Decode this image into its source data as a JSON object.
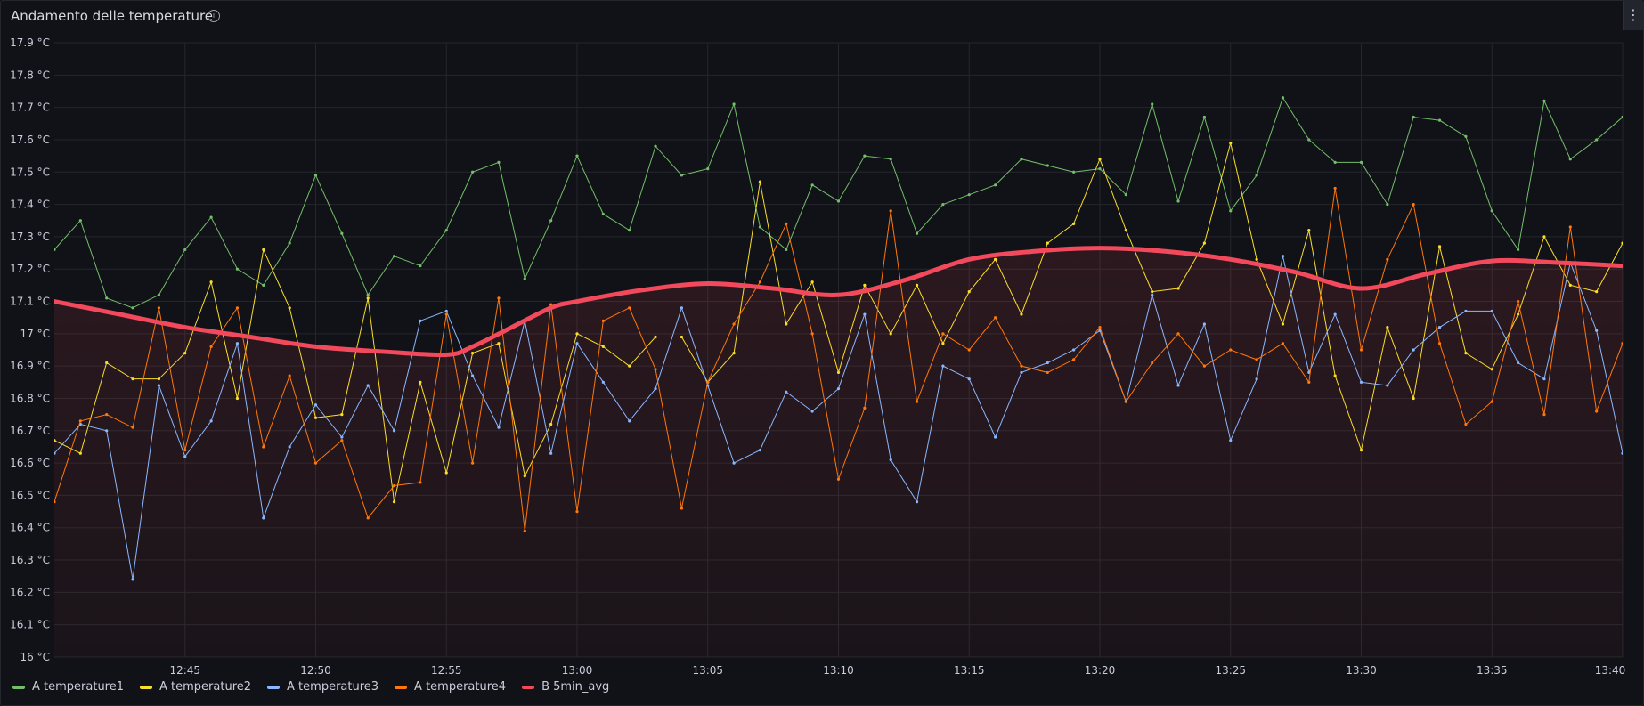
{
  "panel": {
    "title": "Andamento delle temperature",
    "menu_icon": "kebab-menu-icon",
    "info_icon": "info-icon"
  },
  "colors": {
    "temperature1": "#73bf69",
    "temperature2": "#fade2a",
    "temperature3": "#8ab8ff",
    "temperature4": "#ff780a",
    "avg": "#f2495c",
    "grid": "#24262c",
    "axis_text": "#ccccdc"
  },
  "chart_data": {
    "type": "line",
    "title": "Andamento delle temperature",
    "xlabel": "",
    "ylabel": "",
    "ylim": [
      16.0,
      17.9
    ],
    "xlim": [
      "12:40",
      "13:40"
    ],
    "yticks": [
      "16 °C",
      "16.1 °C",
      "16.2 °C",
      "16.3 °C",
      "16.4 °C",
      "16.5 °C",
      "16.6 °C",
      "16.7 °C",
      "16.8 °C",
      "16.9 °C",
      "17 °C",
      "17.1 °C",
      "17.2 °C",
      "17.3 °C",
      "17.4 °C",
      "17.5 °C",
      "17.6 °C",
      "17.7 °C",
      "17.8 °C",
      "17.9 °C"
    ],
    "xticks": [
      "12:45",
      "12:50",
      "12:55",
      "13:00",
      "13:05",
      "13:10",
      "13:15",
      "13:20",
      "13:25",
      "13:30",
      "13:35",
      "13:40"
    ],
    "grid": true,
    "legend_position": "bottom-left",
    "series": [
      {
        "name": "A temperature1",
        "x": [
          "12:40",
          "12:41",
          "12:42",
          "12:43",
          "12:44",
          "12:45",
          "12:46",
          "12:47",
          "12:48",
          "12:49",
          "12:50",
          "12:51",
          "12:52",
          "12:53",
          "12:54",
          "12:55",
          "12:56",
          "12:57",
          "12:58",
          "12:59",
          "13:00",
          "13:01",
          "13:02",
          "13:03",
          "13:04",
          "13:05",
          "13:06",
          "13:07",
          "13:08",
          "13:09",
          "13:10",
          "13:11",
          "13:12",
          "13:13",
          "13:14",
          "13:15",
          "13:16",
          "13:17",
          "13:18",
          "13:19",
          "13:20",
          "13:21",
          "13:22",
          "13:23",
          "13:24",
          "13:25",
          "13:26",
          "13:27",
          "13:28",
          "13:29",
          "13:30",
          "13:31",
          "13:32",
          "13:33",
          "13:34",
          "13:35",
          "13:36",
          "13:37",
          "13:38",
          "13:39",
          "13:40"
        ],
        "values": [
          17.26,
          17.35,
          17.11,
          17.08,
          17.12,
          17.26,
          17.36,
          17.2,
          17.15,
          17.28,
          17.49,
          17.31,
          17.12,
          17.24,
          17.21,
          17.32,
          17.5,
          17.53,
          17.17,
          17.35,
          17.55,
          17.37,
          17.32,
          17.58,
          17.49,
          17.51,
          17.71,
          17.33,
          17.26,
          17.46,
          17.41,
          17.55,
          17.54,
          17.31,
          17.4,
          17.43,
          17.46,
          17.54,
          17.52,
          17.5,
          17.51,
          17.43,
          17.71,
          17.41,
          17.67,
          17.38,
          17.49,
          17.73,
          17.6,
          17.53,
          17.53,
          17.4,
          17.67,
          17.66,
          17.61,
          17.38,
          17.26,
          17.72,
          17.54,
          17.6,
          17.67
        ]
      },
      {
        "name": "A temperature2",
        "x": [
          "12:40",
          "12:41",
          "12:42",
          "12:43",
          "12:44",
          "12:45",
          "12:46",
          "12:47",
          "12:48",
          "12:49",
          "12:50",
          "12:51",
          "12:52",
          "12:53",
          "12:54",
          "12:55",
          "12:56",
          "12:57",
          "12:58",
          "12:59",
          "13:00",
          "13:01",
          "13:02",
          "13:03",
          "13:04",
          "13:05",
          "13:06",
          "13:07",
          "13:08",
          "13:09",
          "13:10",
          "13:11",
          "13:12",
          "13:13",
          "13:14",
          "13:15",
          "13:16",
          "13:17",
          "13:18",
          "13:19",
          "13:20",
          "13:21",
          "13:22",
          "13:23",
          "13:24",
          "13:25",
          "13:26",
          "13:27",
          "13:28",
          "13:29",
          "13:30",
          "13:31",
          "13:32",
          "13:33",
          "13:34",
          "13:35",
          "13:36",
          "13:37",
          "13:38",
          "13:39",
          "13:40"
        ],
        "values": [
          16.67,
          16.63,
          16.91,
          16.86,
          16.86,
          16.94,
          17.16,
          16.8,
          17.26,
          17.08,
          16.74,
          16.75,
          17.11,
          16.48,
          16.85,
          16.57,
          16.94,
          16.97,
          16.56,
          16.72,
          17.0,
          16.96,
          16.9,
          16.99,
          16.99,
          16.85,
          16.94,
          17.47,
          17.03,
          17.16,
          16.88,
          17.15,
          17.0,
          17.15,
          16.97,
          17.13,
          17.23,
          17.06,
          17.28,
          17.34,
          17.54,
          17.32,
          17.13,
          17.14,
          17.28,
          17.59,
          17.23,
          17.03,
          17.32,
          16.87,
          16.64,
          17.02,
          16.8,
          17.27,
          16.94,
          16.89,
          17.06,
          17.3,
          17.15,
          17.13,
          17.28
        ]
      },
      {
        "name": "A temperature3",
        "x": [
          "12:40",
          "12:41",
          "12:42",
          "12:43",
          "12:44",
          "12:45",
          "12:46",
          "12:47",
          "12:48",
          "12:49",
          "12:50",
          "12:51",
          "12:52",
          "12:53",
          "12:54",
          "12:55",
          "12:56",
          "12:57",
          "12:58",
          "12:59",
          "13:00",
          "13:01",
          "13:02",
          "13:03",
          "13:04",
          "13:05",
          "13:06",
          "13:07",
          "13:08",
          "13:09",
          "13:10",
          "13:11",
          "13:12",
          "13:13",
          "13:14",
          "13:15",
          "13:16",
          "13:17",
          "13:18",
          "13:19",
          "13:20",
          "13:21",
          "13:22",
          "13:23",
          "13:24",
          "13:25",
          "13:26",
          "13:27",
          "13:28",
          "13:29",
          "13:30",
          "13:31",
          "13:32",
          "13:33",
          "13:34",
          "13:35",
          "13:36",
          "13:37",
          "13:38",
          "13:39",
          "13:40"
        ],
        "values": [
          16.63,
          16.72,
          16.7,
          16.24,
          16.84,
          16.62,
          16.73,
          16.97,
          16.43,
          16.65,
          16.78,
          16.68,
          16.84,
          16.7,
          17.04,
          17.07,
          16.87,
          16.71,
          17.04,
          16.63,
          16.97,
          16.85,
          16.73,
          16.83,
          17.08,
          16.84,
          16.6,
          16.64,
          16.82,
          16.76,
          16.83,
          17.06,
          16.61,
          16.48,
          16.9,
          16.86,
          16.68,
          16.88,
          16.91,
          16.95,
          17.01,
          16.79,
          17.12,
          16.84,
          17.03,
          16.67,
          16.86,
          17.24,
          16.88,
          17.06,
          16.85,
          16.84,
          16.95,
          17.02,
          17.07,
          17.07,
          16.91,
          16.86,
          17.22,
          17.01,
          16.63
        ]
      },
      {
        "name": "A temperature4",
        "x": [
          "12:40",
          "12:41",
          "12:42",
          "12:43",
          "12:44",
          "12:45",
          "12:46",
          "12:47",
          "12:48",
          "12:49",
          "12:50",
          "12:51",
          "12:52",
          "12:53",
          "12:54",
          "12:55",
          "12:56",
          "12:57",
          "12:58",
          "12:59",
          "13:00",
          "13:01",
          "13:02",
          "13:03",
          "13:04",
          "13:05",
          "13:06",
          "13:07",
          "13:08",
          "13:09",
          "13:10",
          "13:11",
          "13:12",
          "13:13",
          "13:14",
          "13:15",
          "13:16",
          "13:17",
          "13:18",
          "13:19",
          "13:20",
          "13:21",
          "13:22",
          "13:23",
          "13:24",
          "13:25",
          "13:26",
          "13:27",
          "13:28",
          "13:29",
          "13:30",
          "13:31",
          "13:32",
          "13:33",
          "13:34",
          "13:35",
          "13:36",
          "13:37",
          "13:38",
          "13:39",
          "13:40"
        ],
        "values": [
          16.48,
          16.73,
          16.75,
          16.71,
          17.08,
          16.64,
          16.96,
          17.08,
          16.65,
          16.87,
          16.6,
          16.67,
          16.43,
          16.53,
          16.54,
          17.06,
          16.6,
          17.11,
          16.39,
          17.09,
          16.45,
          17.04,
          17.08,
          16.89,
          16.46,
          16.85,
          17.03,
          17.16,
          17.34,
          17.0,
          16.55,
          16.77,
          17.38,
          16.79,
          17.0,
          16.95,
          17.05,
          16.9,
          16.88,
          16.92,
          17.02,
          16.79,
          16.91,
          17.0,
          16.9,
          16.95,
          16.92,
          16.97,
          16.85,
          17.45,
          16.95,
          17.23,
          17.4,
          16.97,
          16.72,
          16.79,
          17.1,
          16.75,
          17.33,
          16.76,
          16.97
        ]
      },
      {
        "name": "B 5min_avg",
        "x": [
          "12:40",
          "12:42.5",
          "12:45",
          "12:47.5",
          "12:50",
          "12:52.5",
          "12:55",
          "12:56",
          "12:57.5",
          "12:59",
          "13:00",
          "13:02.5",
          "13:05",
          "13:07.5",
          "13:10",
          "13:12.5",
          "13:15",
          "13:17.5",
          "13:20",
          "13:22.5",
          "13:25",
          "13:27.5",
          "13:30",
          "13:32.5",
          "13:35",
          "13:37.5",
          "13:40"
        ],
        "values": [
          17.1,
          17.06,
          17.02,
          16.99,
          16.96,
          16.945,
          16.935,
          16.96,
          17.02,
          17.08,
          17.1,
          17.135,
          17.155,
          17.14,
          17.12,
          17.165,
          17.23,
          17.255,
          17.265,
          17.255,
          17.23,
          17.19,
          17.14,
          17.185,
          17.225,
          17.22,
          17.21
        ]
      }
    ]
  },
  "legend": [
    {
      "label": "A temperature1",
      "color": "#73bf69"
    },
    {
      "label": "A temperature2",
      "color": "#fade2a"
    },
    {
      "label": "A temperature3",
      "color": "#8ab8ff"
    },
    {
      "label": "A temperature4",
      "color": "#ff780a"
    },
    {
      "label": "B 5min_avg",
      "color": "#f2495c"
    }
  ]
}
